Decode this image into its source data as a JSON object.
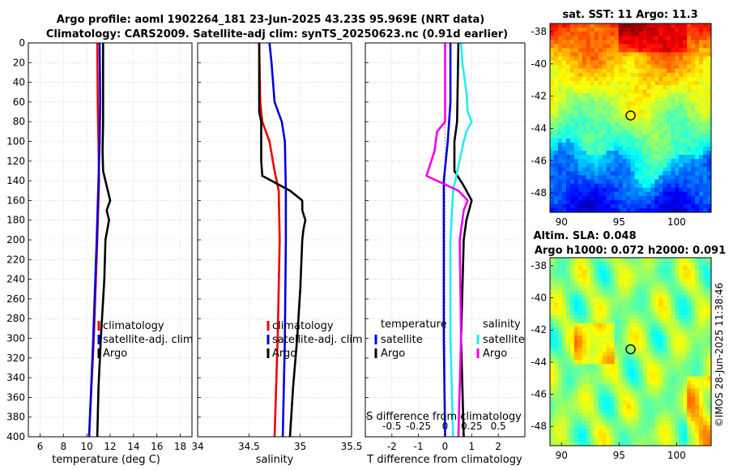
{
  "header": {
    "title_line1": "Argo profile: aoml 1902264_181 23-Jun-2025 43.23S 95.969E (NRT data)",
    "title_line2": "Climatology: CARS2009. Satellite-adj clim: synTS_20250623.nc (0.91d earlier)"
  },
  "timestamp": "©IMOS 28-Jun-2025 11:38:46",
  "colors": {
    "red": "#ee0000",
    "blue": "#0000dd",
    "black": "#000000",
    "cyan": "#22eeee",
    "magenta": "#ee00ee",
    "grid": "#bbbbbb"
  },
  "chart_data": [
    {
      "type": "line",
      "name": "temperature",
      "xlabel": "temperature (deg C)",
      "xlim": [
        5,
        19
      ],
      "xticks": [
        "6",
        "8",
        "10",
        "12",
        "14",
        "16",
        "18"
      ],
      "ylim": [
        0,
        400
      ],
      "yticks": [
        "0",
        "20",
        "40",
        "60",
        "80",
        "100",
        "120",
        "140",
        "160",
        "180",
        "200",
        "220",
        "240",
        "260",
        "280",
        "300",
        "320",
        "340",
        "360",
        "380",
        "400"
      ],
      "legend": [
        "climatology",
        "satellite-adj. clim",
        "Argo"
      ],
      "series": [
        {
          "name": "climatology",
          "color": "red",
          "depth": [
            0,
            70,
            100,
            140,
            200,
            300,
            400
          ],
          "values": [
            10.9,
            10.95,
            11.0,
            11.05,
            10.9,
            10.6,
            10.2
          ]
        },
        {
          "name": "satellite-adj. clim",
          "color": "blue",
          "depth": [
            0,
            60,
            100,
            140,
            200,
            300,
            400
          ],
          "values": [
            11.1,
            11.15,
            11.1,
            11.0,
            10.85,
            10.55,
            10.2
          ]
        },
        {
          "name": "Argo",
          "color": "black",
          "depth": [
            0,
            80,
            110,
            130,
            150,
            160,
            170,
            180,
            200,
            240,
            300,
            350,
            400
          ],
          "values": [
            11.4,
            11.4,
            11.35,
            11.4,
            11.8,
            12.0,
            11.7,
            11.9,
            11.6,
            11.5,
            11.2,
            11.0,
            10.9
          ]
        }
      ]
    },
    {
      "type": "line",
      "name": "salinity",
      "xlabel": "salinity",
      "xlim": [
        34,
        35.5
      ],
      "xticks": [
        "34",
        "34.5",
        "35",
        "35.5"
      ],
      "ylim": [
        0,
        400
      ],
      "legend": [
        "climatology",
        "satellite-adj. clim",
        "Argo"
      ],
      "series": [
        {
          "name": "climatology",
          "color": "red",
          "depth": [
            0,
            60,
            80,
            100,
            130,
            150,
            200,
            300,
            400
          ],
          "values": [
            34.6,
            34.61,
            34.63,
            34.7,
            34.75,
            34.79,
            34.8,
            34.78,
            34.75
          ]
        },
        {
          "name": "satellite-adj. clim",
          "color": "blue",
          "depth": [
            0,
            20,
            60,
            80,
            100,
            150,
            200,
            300,
            400
          ],
          "values": [
            34.7,
            34.72,
            34.75,
            34.82,
            34.85,
            34.86,
            34.86,
            34.85,
            34.83
          ]
        },
        {
          "name": "Argo",
          "color": "black",
          "depth": [
            0,
            70,
            80,
            120,
            135,
            150,
            160,
            170,
            180,
            190,
            200,
            250,
            300,
            350,
            400
          ],
          "values": [
            34.6,
            34.6,
            34.62,
            34.62,
            34.63,
            34.9,
            35.02,
            35.02,
            35.05,
            35.03,
            35.02,
            35.0,
            34.97,
            34.93,
            34.9
          ]
        }
      ]
    },
    {
      "type": "line",
      "name": "difference",
      "xlabel": "T difference from climatology",
      "top_xlabel": "S difference from climatology",
      "xlim": [
        -3,
        3
      ],
      "xticks": [
        "-2",
        "-1",
        "0",
        "1",
        "2"
      ],
      "top_xticks": [
        "-0.5",
        "-0.25",
        "0",
        "0.25",
        "0.5"
      ],
      "ylim": [
        0,
        400
      ],
      "legend_t_title": "temperature",
      "legend_s_title": "salinity",
      "legend_t": [
        "satellite",
        "Argo"
      ],
      "legend_s": [
        "satellite",
        "Argo"
      ],
      "series": [
        {
          "name": "T satellite",
          "color": "blue",
          "depth": [
            0,
            60,
            100,
            140,
            200,
            300,
            400
          ],
          "values": [
            0.2,
            0.2,
            0.1,
            -0.05,
            -0.05,
            -0.05,
            0.0
          ]
        },
        {
          "name": "T Argo",
          "color": "black",
          "depth": [
            0,
            80,
            100,
            130,
            145,
            160,
            180,
            200,
            300,
            400
          ],
          "values": [
            0.5,
            0.45,
            0.35,
            0.35,
            0.7,
            1.0,
            0.8,
            0.7,
            0.6,
            0.7
          ]
        },
        {
          "name": "S satellite",
          "color": "cyan",
          "depth": [
            0,
            20,
            50,
            70,
            80,
            90,
            100,
            150,
            200,
            300,
            400
          ],
          "values": [
            0.6,
            0.65,
            0.8,
            0.85,
            1.0,
            0.8,
            0.7,
            0.3,
            0.2,
            0.2,
            0.3
          ]
        },
        {
          "name": "S Argo",
          "color": "magenta",
          "depth": [
            0,
            80,
            90,
            110,
            135,
            150,
            160,
            170,
            190,
            200,
            300,
            400
          ],
          "values": [
            0.0,
            0.0,
            -0.3,
            -0.4,
            -0.7,
            0.5,
            0.85,
            0.7,
            0.6,
            0.55,
            0.6,
            0.5
          ]
        }
      ]
    }
  ],
  "maps": [
    {
      "type": "heatmap",
      "name": "sst",
      "title": "sat. SST: 11 Argo: 11.3",
      "xticks": [
        "90",
        "95",
        "100"
      ],
      "yticks": [
        "-38",
        "-40",
        "-42",
        "-44",
        "-46",
        "-48"
      ],
      "lon_range": [
        89,
        103
      ],
      "lat_range": [
        -49.2,
        -37.5
      ],
      "marker": {
        "lon": 96.0,
        "lat": -43.2
      }
    },
    {
      "type": "heatmap",
      "name": "sla",
      "title_line1": "Altim. SLA: 0.048",
      "title_line2": "Argo h1000: 0.072 h2000: 0.091",
      "xticks": [
        "90",
        "95",
        "100"
      ],
      "yticks": [
        "-38",
        "-40",
        "-42",
        "-44",
        "-46",
        "-48"
      ],
      "lon_range": [
        89,
        103
      ],
      "lat_range": [
        -49.2,
        -37.5
      ],
      "marker": {
        "lon": 96.0,
        "lat": -43.2
      }
    }
  ]
}
